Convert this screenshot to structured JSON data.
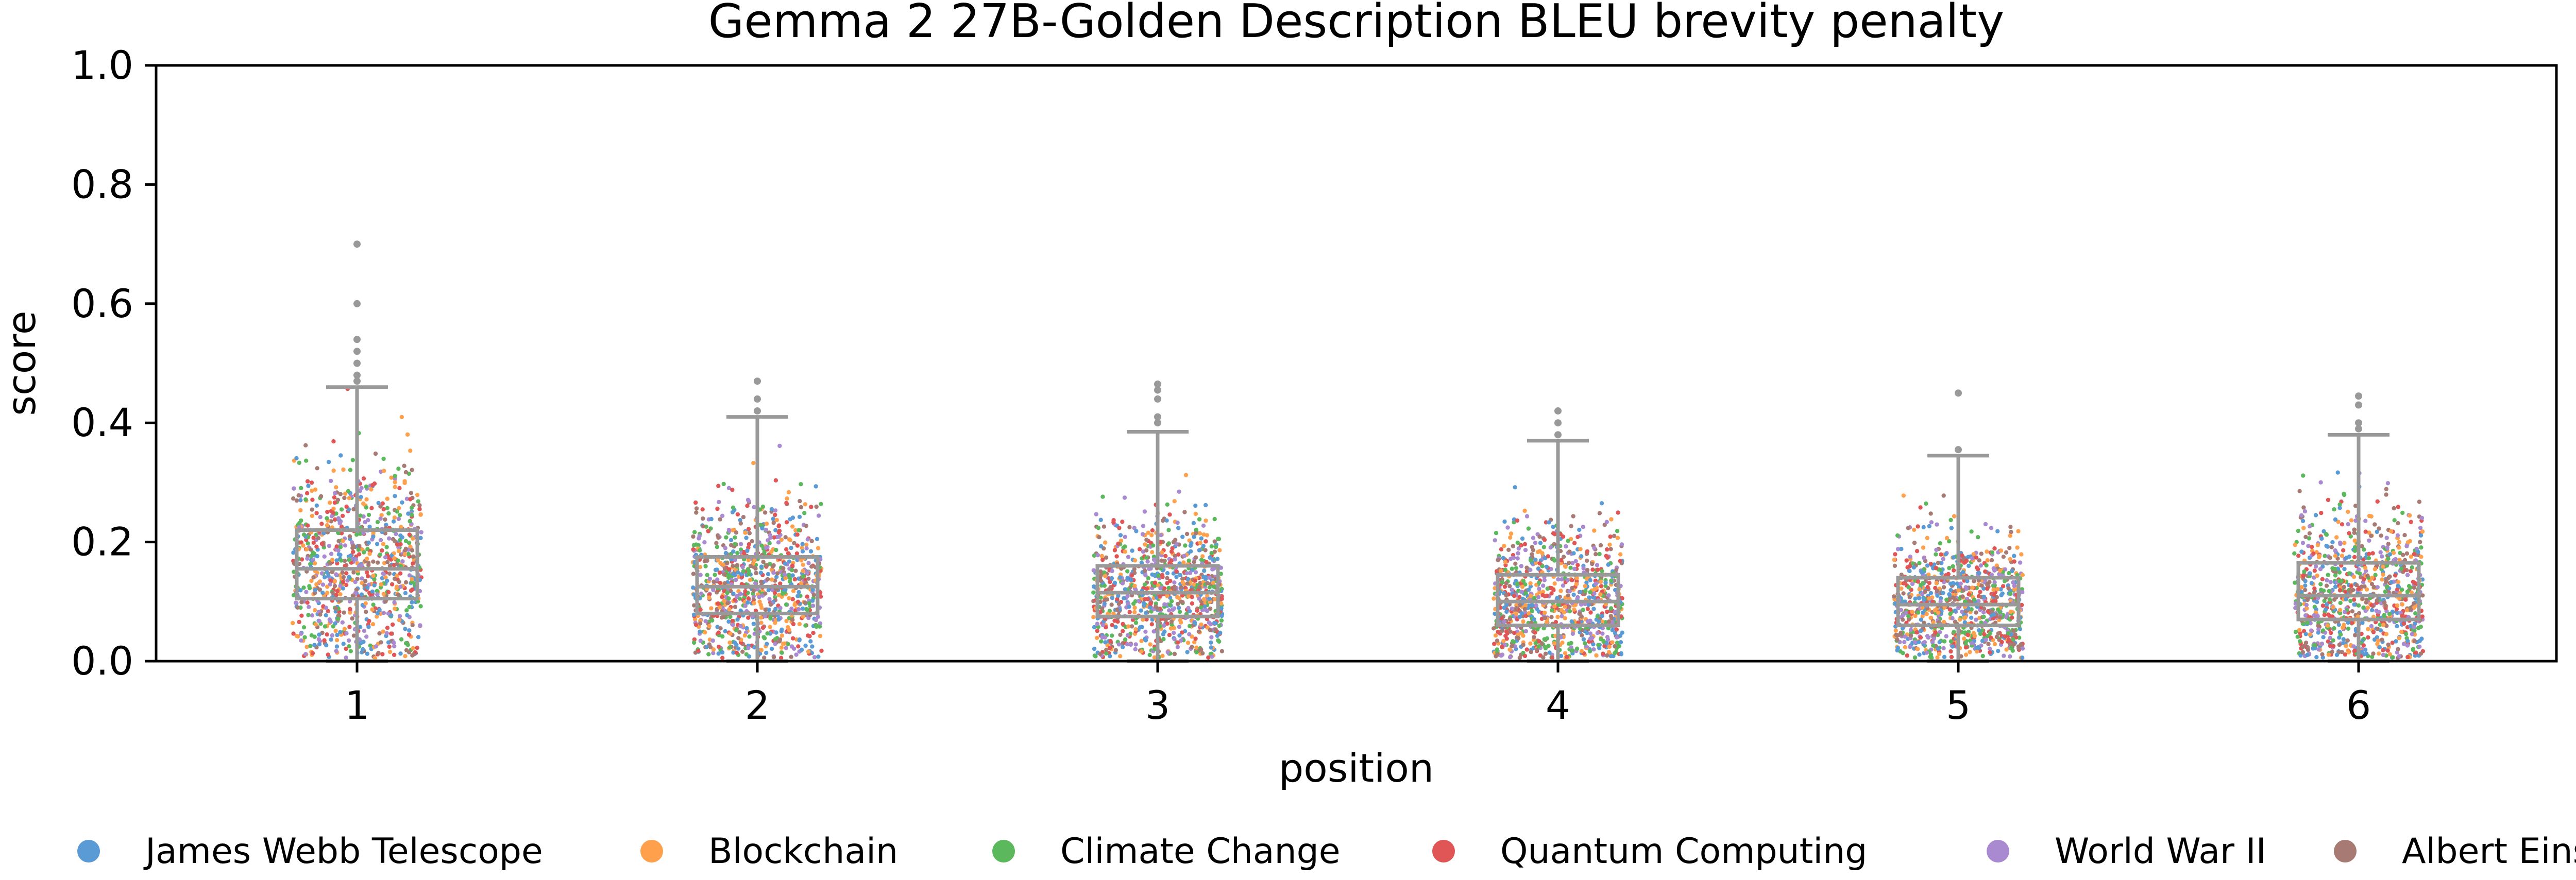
{
  "chart_data": {
    "type": "box_strip",
    "title": "Gemma 2 27B-Golden Description BLEU brevity penalty",
    "xlabel": "position",
    "ylabel": "score",
    "ylim": [
      0.0,
      1.0
    ],
    "yticks": [
      "0.0",
      "0.2",
      "0.4",
      "0.6",
      "0.8",
      "1.0"
    ],
    "categories": [
      "1",
      "2",
      "3",
      "4",
      "5",
      "6"
    ],
    "grid": false,
    "legend_position": "bottom",
    "box_color": "#999999",
    "boxes": [
      {
        "position": "1",
        "whisker_low": 0.0,
        "q1": 0.105,
        "median": 0.155,
        "q3": 0.22,
        "whisker_high": 0.46,
        "outliers": [
          0.47,
          0.48,
          0.5,
          0.52,
          0.54,
          0.6,
          0.7
        ]
      },
      {
        "position": "2",
        "whisker_low": 0.0,
        "q1": 0.08,
        "median": 0.125,
        "q3": 0.175,
        "whisker_high": 0.41,
        "outliers": [
          0.42,
          0.44,
          0.47
        ]
      },
      {
        "position": "3",
        "whisker_low": 0.0,
        "q1": 0.075,
        "median": 0.115,
        "q3": 0.16,
        "whisker_high": 0.385,
        "outliers": [
          0.4,
          0.41,
          0.44,
          0.455,
          0.465
        ]
      },
      {
        "position": "4",
        "whisker_low": 0.0,
        "q1": 0.06,
        "median": 0.1,
        "q3": 0.145,
        "whisker_high": 0.37,
        "outliers": [
          0.38,
          0.4,
          0.42
        ]
      },
      {
        "position": "5",
        "whisker_low": 0.0,
        "q1": 0.06,
        "median": 0.095,
        "q3": 0.14,
        "whisker_high": 0.345,
        "outliers": [
          0.355,
          0.45
        ]
      },
      {
        "position": "6",
        "whisker_low": 0.0,
        "q1": 0.07,
        "median": 0.11,
        "q3": 0.165,
        "whisker_high": 0.38,
        "outliers": [
          0.39,
          0.4,
          0.43,
          0.445
        ]
      }
    ],
    "series": [
      {
        "name": "James Webb Telescope",
        "color": "#5a9bd5"
      },
      {
        "name": "Blockchain",
        "color": "#ffa04d"
      },
      {
        "name": "Climate Change",
        "color": "#5cb85c"
      },
      {
        "name": "Quantum Computing",
        "color": "#e05555"
      },
      {
        "name": "World War II",
        "color": "#a98ad0"
      },
      {
        "name": "Albert Einstein",
        "color": "#a87a74"
      }
    ]
  }
}
